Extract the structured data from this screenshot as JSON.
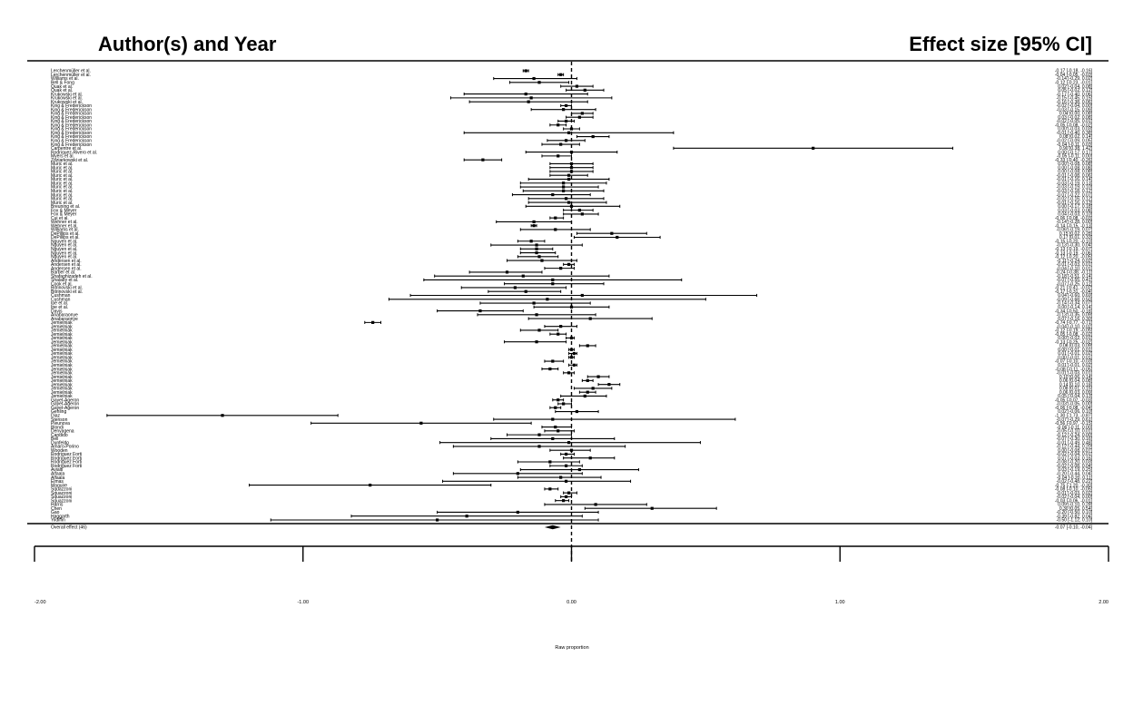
{
  "chart_data": {
    "type": "forest",
    "header_left": "Author(s) and Year",
    "header_right": "Effect size [95% CI]",
    "xlabel": "Raw proportion",
    "xlim": [
      -2,
      2
    ],
    "xticks": [
      "-2.00",
      "-1.00",
      "0.00",
      "1.00",
      "2.00"
    ],
    "reference_line": 0,
    "studies": [
      {
        "label": "Lerchenmüller et al.",
        "est": -0.17,
        "lo": -0.18,
        "hi": -0.16
      },
      {
        "label": "Lerchenmüller et al.",
        "est": -0.04,
        "lo": -0.05,
        "hi": -0.03
      },
      {
        "label": "Williams et al.",
        "est": -0.14,
        "lo": -0.29,
        "hi": 0.02
      },
      {
        "label": "Bell & Fong",
        "est": -0.12,
        "lo": -0.23,
        "hi": -0.01
      },
      {
        "label": "Quak et al.",
        "est": 0.02,
        "lo": -0.04,
        "hi": 0.08
      },
      {
        "label": "Quak et al.",
        "est": 0.05,
        "lo": -0.02,
        "hi": 0.12
      },
      {
        "label": "Krukowski et al.",
        "est": -0.17,
        "lo": -0.4,
        "hi": 0.06
      },
      {
        "label": "Krukowski et al.",
        "est": -0.15,
        "lo": -0.45,
        "hi": 0.15
      },
      {
        "label": "Krukowski et al.",
        "est": -0.16,
        "lo": -0.38,
        "hi": 0.06
      },
      {
        "label": "King & Frederickson",
        "est": -0.02,
        "lo": -0.04,
        "hi": 0.0
      },
      {
        "label": "King & Frederickson",
        "est": -0.03,
        "lo": -0.15,
        "hi": 0.09
      },
      {
        "label": "King & Frederickson",
        "est": 0.04,
        "lo": 0.0,
        "hi": 0.08
      },
      {
        "label": "King & Frederickson",
        "est": 0.03,
        "lo": -0.02,
        "hi": 0.08
      },
      {
        "label": "King & Frederickson",
        "est": -0.02,
        "lo": -0.05,
        "hi": 0.01
      },
      {
        "label": "King & Frederickson",
        "est": -0.05,
        "lo": -0.08,
        "hi": -0.02
      },
      {
        "label": "King & Frederickson",
        "est": 0.0,
        "lo": -0.03,
        "hi": 0.03
      },
      {
        "label": "King & Frederickson",
        "est": -0.01,
        "lo": -0.4,
        "hi": 0.38
      },
      {
        "label": "King & Frederickson",
        "est": 0.08,
        "lo": 0.02,
        "hi": 0.14
      },
      {
        "label": "King & Frederickson",
        "est": -0.02,
        "lo": -0.09,
        "hi": 0.05
      },
      {
        "label": "King & Frederickson",
        "est": -0.04,
        "lo": -0.11,
        "hi": 0.03
      },
      {
        "label": "Carpentre et al.",
        "est": 0.9,
        "lo": 0.38,
        "hi": 1.42
      },
      {
        "label": "Rodriquez-Rivero et al.",
        "est": 0.0,
        "lo": -0.17,
        "hi": 0.17
      },
      {
        "label": "Myers et al.",
        "est": -0.05,
        "lo": -0.11,
        "hi": 0.0
      },
      {
        "label": "Zdziarkowski et al.",
        "est": -0.33,
        "lo": -0.4,
        "hi": -0.26
      },
      {
        "label": "Muric et al.",
        "est": 0.0,
        "lo": -0.08,
        "hi": 0.08
      },
      {
        "label": "Muric et al.",
        "est": 0.0,
        "lo": -0.08,
        "hi": 0.08
      },
      {
        "label": "Muric et al.",
        "est": 0.0,
        "lo": -0.08,
        "hi": 0.08
      },
      {
        "label": "Muric et al.",
        "est": -0.01,
        "lo": -0.08,
        "hi": 0.06
      },
      {
        "label": "Muric et al.",
        "est": -0.01,
        "lo": -0.16,
        "hi": 0.14
      },
      {
        "label": "Muric et al.",
        "est": -0.03,
        "lo": -0.19,
        "hi": 0.13
      },
      {
        "label": "Muric et al.",
        "est": -0.03,
        "lo": -0.19,
        "hi": 0.1
      },
      {
        "label": "Muric et al.",
        "est": -0.03,
        "lo": -0.18,
        "hi": 0.12
      },
      {
        "label": "Muric et al.",
        "est": -0.07,
        "lo": -0.22,
        "hi": 0.07
      },
      {
        "label": "Muric et al.",
        "est": -0.02,
        "lo": -0.16,
        "hi": 0.12
      },
      {
        "label": "Muric et al.",
        "est": -0.01,
        "lo": -0.16,
        "hi": 0.13
      },
      {
        "label": "Breuning et al.",
        "est": 0.0,
        "lo": -0.17,
        "hi": 0.18
      },
      {
        "label": "Fox & Meyer",
        "est": 0.03,
        "lo": -0.03,
        "hi": 0.08
      },
      {
        "label": "Fox & Meyer",
        "est": 0.04,
        "lo": -0.03,
        "hi": 0.1
      },
      {
        "label": "Cui et al.",
        "est": -0.06,
        "lo": -0.08,
        "hi": -0.03
      },
      {
        "label": "Wehner et al.",
        "est": -0.14,
        "lo": -0.28,
        "hi": 0.0
      },
      {
        "label": "Wehner et al.",
        "est": -0.14,
        "lo": -0.15,
        "hi": -0.13
      },
      {
        "label": "Williams et al.",
        "est": -0.06,
        "lo": -0.19,
        "hi": 0.07
      },
      {
        "label": "DePillips et al.",
        "est": 0.15,
        "lo": 0.02,
        "hi": 0.28
      },
      {
        "label": "DePillips et al.",
        "est": 0.17,
        "lo": 0.01,
        "hi": 0.33
      },
      {
        "label": "Nguyen et al.",
        "est": -0.15,
        "lo": -0.2,
        "hi": -0.1
      },
      {
        "label": "Nguyen et al.",
        "est": -0.13,
        "lo": -0.3,
        "hi": 0.04
      },
      {
        "label": "Nguyen et al.",
        "est": -0.13,
        "lo": -0.19,
        "hi": -0.07
      },
      {
        "label": "Nguyen et al.",
        "est": -0.13,
        "lo": -0.19,
        "hi": -0.06
      },
      {
        "label": "Nguyen et al.",
        "est": -0.12,
        "lo": -0.2,
        "hi": -0.05
      },
      {
        "label": "Andersen et al.",
        "est": -0.11,
        "lo": -0.24,
        "hi": 0.02
      },
      {
        "label": "Andersen et al.",
        "est": -0.01,
        "lo": -0.03,
        "hi": 0.01
      },
      {
        "label": "Andersen et al.",
        "est": -0.04,
        "lo": -0.1,
        "hi": 0.01
      },
      {
        "label": "Barber et al.",
        "est": -0.24,
        "lo": -0.38,
        "hi": -0.11
      },
      {
        "label": "Shafaghizadeh et al.",
        "est": -0.18,
        "lo": -0.51,
        "hi": 0.14
      },
      {
        "label": "Shalaby et al.",
        "est": -0.07,
        "lo": -0.55,
        "hi": 0.41
      },
      {
        "label": "Cook et al.",
        "est": -0.07,
        "lo": -0.25,
        "hi": 0.12
      },
      {
        "label": "Bitrinovski et al.",
        "est": -0.21,
        "lo": -0.41,
        "hi": -0.02
      },
      {
        "label": "Bitrinovski et al.",
        "est": -0.17,
        "lo": -0.31,
        "hi": -0.04
      },
      {
        "label": "Cushman",
        "est": 0.04,
        "lo": -0.6,
        "hi": 0.69
      },
      {
        "label": "Cushman",
        "est": -0.09,
        "lo": -0.68,
        "hi": 0.5
      },
      {
        "label": "Ipe et al.",
        "est": -0.14,
        "lo": -0.34,
        "hi": 0.07
      },
      {
        "label": "Ipe et al.",
        "est": 0.0,
        "lo": -0.14,
        "hi": 0.14
      },
      {
        "label": "Davis",
        "est": -0.34,
        "lo": -0.5,
        "hi": -0.18
      },
      {
        "label": "Anabaraonye",
        "est": -0.13,
        "lo": -0.35,
        "hi": 0.09
      },
      {
        "label": "Anabaraonye",
        "est": 0.07,
        "lo": -0.16,
        "hi": 0.3
      },
      {
        "label": "Jemielniak",
        "est": -0.74,
        "lo": -0.77,
        "hi": -0.71
      },
      {
        "label": "Jemielniak",
        "est": -0.04,
        "lo": -0.1,
        "hi": 0.02
      },
      {
        "label": "Jemielniak",
        "est": -0.12,
        "lo": -0.19,
        "hi": -0.05
      },
      {
        "label": "Jemielniak",
        "est": -0.05,
        "lo": -0.08,
        "hi": -0.02
      },
      {
        "label": "Jemielniak",
        "est": 0.0,
        "lo": -0.02,
        "hi": 0.01
      },
      {
        "label": "Jemielniak",
        "est": -0.13,
        "lo": -0.25,
        "hi": -0.02
      },
      {
        "label": "Jemielniak",
        "est": 0.06,
        "lo": 0.03,
        "hi": 0.09
      },
      {
        "label": "Jemielniak",
        "est": 0.0,
        "lo": -0.01,
        "hi": 0.01
      },
      {
        "label": "Jemielniak",
        "est": 0.01,
        "lo": -0.01,
        "hi": 0.02
      },
      {
        "label": "Jemielniak",
        "est": 0.0,
        "lo": -0.01,
        "hi": 0.01
      },
      {
        "label": "Jemielniak",
        "est": -0.07,
        "lo": -0.1,
        "hi": -0.03
      },
      {
        "label": "Jemielniak",
        "est": 0.01,
        "lo": -0.01,
        "hi": 0.02
      },
      {
        "label": "Jemielniak",
        "est": -0.08,
        "lo": -0.11,
        "hi": -0.05
      },
      {
        "label": "Jemielniak",
        "est": -0.01,
        "lo": -0.03,
        "hi": 0.01
      },
      {
        "label": "Jemielniak",
        "est": 0.1,
        "lo": 0.06,
        "hi": 0.14
      },
      {
        "label": "Jemielniak",
        "est": 0.06,
        "lo": 0.04,
        "hi": 0.08
      },
      {
        "label": "Jemielniak",
        "est": 0.14,
        "lo": 0.1,
        "hi": 0.18
      },
      {
        "label": "Jemielniak",
        "est": 0.08,
        "lo": 0.01,
        "hi": 0.15
      },
      {
        "label": "Jemielniak",
        "est": 0.06,
        "lo": 0.03,
        "hi": 0.09
      },
      {
        "label": "Jemielniak",
        "est": 0.05,
        "lo": -0.04,
        "hi": 0.13
      },
      {
        "label": "Gayet-Ageron",
        "est": -0.05,
        "lo": -0.07,
        "hi": -0.03
      },
      {
        "label": "Gayet-Ageron",
        "est": -0.03,
        "lo": -0.05,
        "hi": 0.0
      },
      {
        "label": "Gayet-Ageron",
        "est": -0.06,
        "lo": -0.08,
        "hi": -0.04
      },
      {
        "label": "Gehling",
        "est": 0.02,
        "lo": -0.06,
        "hi": 0.1
      },
      {
        "label": "Diaz",
        "est": -1.3,
        "lo": -1.73,
        "hi": -0.87
      },
      {
        "label": "Stenson",
        "est": -0.07,
        "lo": -0.29,
        "hi": 0.61
      },
      {
        "label": "Pleunova",
        "est": -0.56,
        "lo": -0.97,
        "hi": -0.15
      },
      {
        "label": "Blondi",
        "est": -0.06,
        "lo": -0.11,
        "hi": 0.0
      },
      {
        "label": "Denyagena",
        "est": -0.05,
        "lo": -0.1,
        "hi": 0.01
      },
      {
        "label": "Candido",
        "est": -0.12,
        "lo": -0.24,
        "hi": 0.0
      },
      {
        "label": "Bell",
        "est": -0.07,
        "lo": -0.3,
        "hi": 0.16
      },
      {
        "label": "Dunfeldo",
        "est": -0.01,
        "lo": -0.49,
        "hi": 0.48
      },
      {
        "label": "Amaro-Porino",
        "est": -0.12,
        "lo": -0.44,
        "hi": 0.2
      },
      {
        "label": "Wooden",
        "est": 0.0,
        "lo": -0.08,
        "hi": 0.07
      },
      {
        "label": "Rodriguez Forti",
        "est": -0.02,
        "lo": -0.04,
        "hi": 0.01
      },
      {
        "label": "Rodriguez Forti",
        "est": 0.07,
        "lo": -0.03,
        "hi": 0.16
      },
      {
        "label": "Rodriguez Forti",
        "est": -0.08,
        "lo": -0.2,
        "hi": 0.03
      },
      {
        "label": "Rodriguez Forti",
        "est": -0.02,
        "lo": -0.08,
        "hi": 0.04
      },
      {
        "label": "Avialti",
        "est": 0.03,
        "lo": -0.19,
        "hi": 0.25
      },
      {
        "label": "Alfaala",
        "est": -0.2,
        "lo": -0.44,
        "hi": 0.04
      },
      {
        "label": "Alfaala",
        "est": -0.04,
        "lo": -0.2,
        "hi": 0.11
      },
      {
        "label": "Elmas",
        "est": -0.02,
        "lo": -0.48,
        "hi": 0.22
      },
      {
        "label": "Maguire",
        "est": -0.75,
        "lo": -1.2,
        "hi": -0.3
      },
      {
        "label": "Squazzoni",
        "est": -0.08,
        "lo": -0.1,
        "hi": -0.05
      },
      {
        "label": "Squazzoni",
        "est": -0.01,
        "lo": -0.03,
        "hi": 0.02
      },
      {
        "label": "Squazzoni",
        "est": -0.02,
        "lo": -0.04,
        "hi": 0.0
      },
      {
        "label": "Squazzoni",
        "est": -0.03,
        "lo": -0.06,
        "hi": -0.01
      },
      {
        "label": "Harris",
        "est": 0.09,
        "lo": -0.1,
        "hi": 0.28
      },
      {
        "label": "Chen",
        "est": 0.3,
        "lo": 0.05,
        "hi": 0.54
      },
      {
        "label": "Gao",
        "est": -0.2,
        "lo": -0.5,
        "hi": 0.1
      },
      {
        "label": "Haggarth",
        "est": -0.39,
        "lo": -0.82,
        "hi": 0.04
      },
      {
        "label": "Yildiffin",
        "est": -0.5,
        "lo": -1.12,
        "hi": 0.1
      }
    ],
    "overall": {
      "label": "Overall effect (46)",
      "est": -0.07,
      "lo": -0.1,
      "hi": -0.04
    }
  }
}
